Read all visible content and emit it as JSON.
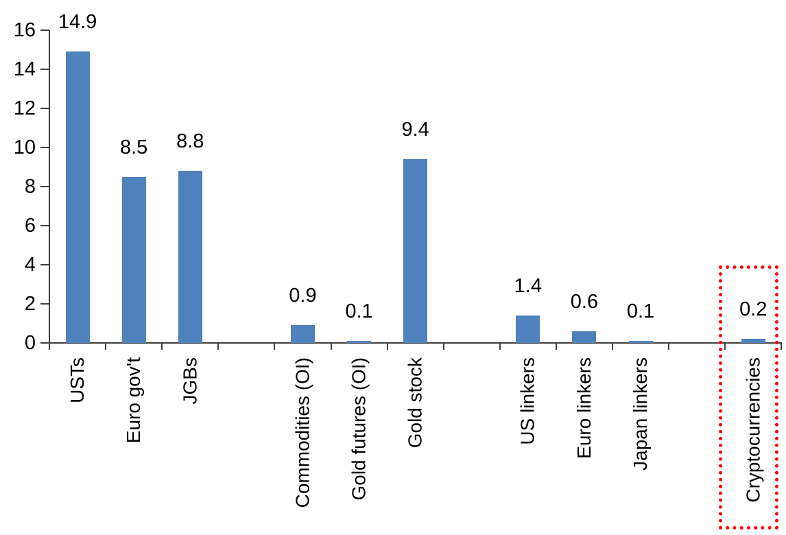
{
  "chart_data": {
    "type": "bar",
    "title": "",
    "xlabel": "",
    "ylabel": "",
    "ylim": [
      0,
      16
    ],
    "grid": false,
    "legend": null,
    "y_axis": {
      "min": 0,
      "max": 16,
      "step": 2,
      "tick_labels": [
        "0",
        "2",
        "4",
        "6",
        "8",
        "10",
        "12",
        "14",
        "16"
      ]
    },
    "categories": [
      "USTs",
      "Euro gov't",
      "JGBs",
      "Commodities (OI)",
      "Gold futures (OI)",
      "Gold stock",
      "US linkers",
      "Euro linkers",
      "Japan linkers",
      "Cryptocurrencies"
    ],
    "values": [
      14.9,
      8.5,
      8.8,
      0.9,
      0.1,
      9.4,
      1.4,
      0.6,
      0.1,
      0.2
    ],
    "value_labels": [
      "14.9",
      "8.5",
      "8.8",
      "0.9",
      "0.1",
      "9.4",
      "1.4",
      "0.6",
      "0.1",
      "0.2"
    ],
    "bars": [
      {
        "label": "USTs",
        "value": 14.9,
        "slot": 0
      },
      {
        "label": "Euro gov't",
        "value": 8.5,
        "slot": 1
      },
      {
        "label": "JGBs",
        "value": 8.8,
        "slot": 2
      },
      {
        "label": "Commodities (OI)",
        "value": 0.9,
        "slot": 4
      },
      {
        "label": "Gold futures (OI)",
        "value": 0.1,
        "slot": 5
      },
      {
        "label": "Gold stock",
        "value": 9.4,
        "slot": 6
      },
      {
        "label": "US linkers",
        "value": 1.4,
        "slot": 8
      },
      {
        "label": "Euro linkers",
        "value": 0.6,
        "slot": 9
      },
      {
        "label": "Japan linkers",
        "value": 0.1,
        "slot": 10
      },
      {
        "label": "Cryptocurrencies",
        "value": 0.2,
        "slot": 12,
        "highlighted": true
      }
    ],
    "total_slots": 13,
    "bar_color": "#4F81BD",
    "axis_color": "#404040",
    "text_color": "#000000",
    "highlight_box_color": "#FF0000",
    "highlighted_category": "Cryptocurrencies"
  }
}
